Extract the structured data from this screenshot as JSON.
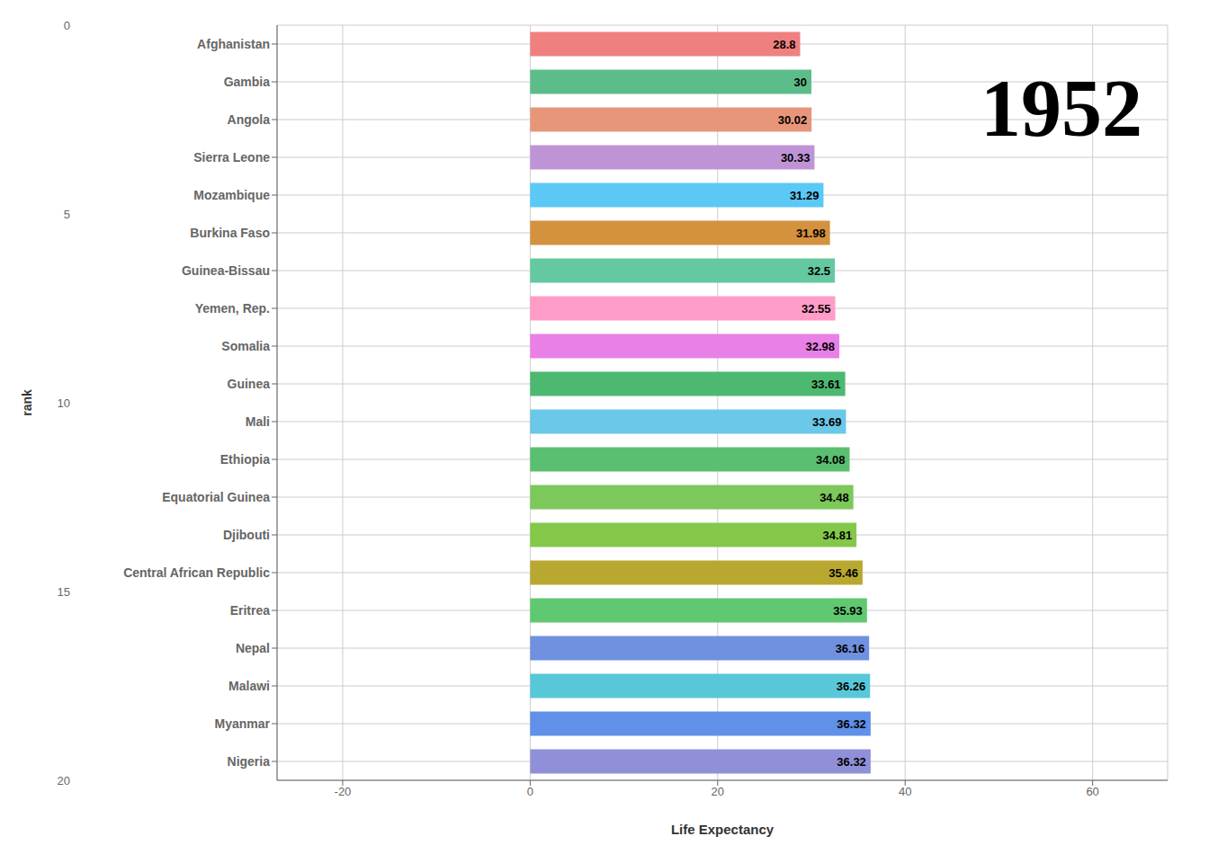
{
  "chart_data": {
    "type": "bar",
    "orientation": "horizontal",
    "title": "1952",
    "xlabel": "Life Expectancy",
    "ylabel": "rank",
    "categories": [
      "Afghanistan",
      "Gambia",
      "Angola",
      "Sierra Leone",
      "Mozambique",
      "Burkina Faso",
      "Guinea-Bissau",
      "Yemen, Rep.",
      "Somalia",
      "Guinea",
      "Mali",
      "Ethiopia",
      "Equatorial Guinea",
      "Djibouti",
      "Central African Republic",
      "Eritrea",
      "Nepal",
      "Malawi",
      "Myanmar",
      "Nigeria"
    ],
    "values": [
      28.8,
      30.0,
      30.02,
      30.33,
      31.29,
      31.98,
      32.5,
      32.55,
      32.98,
      33.61,
      33.69,
      34.08,
      34.48,
      34.81,
      35.46,
      35.93,
      36.16,
      36.26,
      36.32,
      36.32
    ],
    "colors": [
      "#F08080",
      "#5DBD8A",
      "#E8967A",
      "#BF94D6",
      "#5BC8F5",
      "#D4913E",
      "#64C8A0",
      "#FF9DC8",
      "#E880E8",
      "#4DB870",
      "#6BC8E8",
      "#5ABF70",
      "#7CC85A",
      "#84C84A",
      "#B8A830",
      "#60C870",
      "#7090E0",
      "#58C8D8",
      "#6090E8",
      "#9090D8"
    ],
    "xlim": [
      -27,
      68
    ],
    "xticks": [
      -20,
      0,
      20,
      40,
      60
    ],
    "grid": true,
    "data_labels": true,
    "annotations": [
      "0",
      "5",
      "10",
      "15",
      "20"
    ]
  }
}
